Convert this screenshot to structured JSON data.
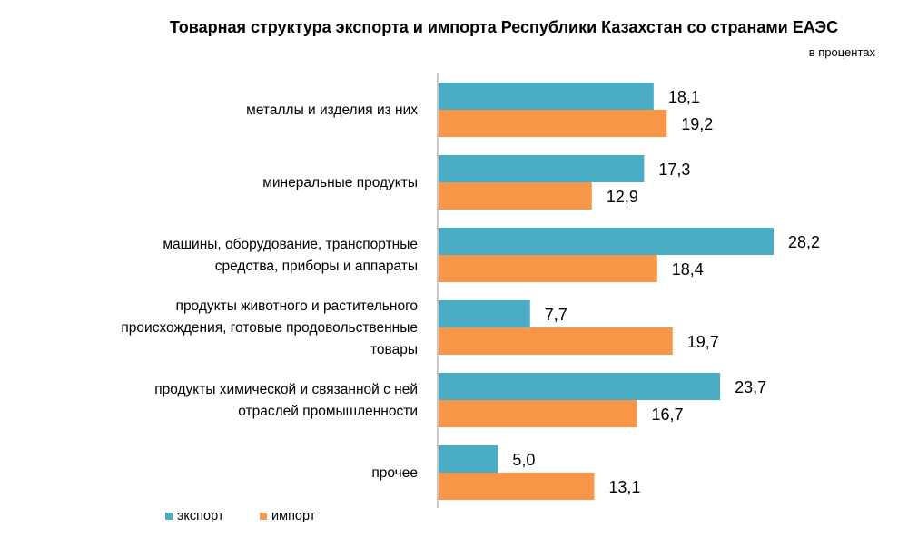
{
  "chart_data": {
    "type": "bar",
    "orientation": "horizontal",
    "title": "Товарная структура экспорта и импорта Республики Казахстан со странами ЕАЭС",
    "subtitle": "в процентах",
    "categories": [
      [
        "металлы и изделия из них"
      ],
      [
        "минеральные продукты"
      ],
      [
        "машины, оборудование, транспортные",
        "средства, приборы и аппараты"
      ],
      [
        "продукты животного и растительного",
        "происхождения, готовые продовольственные",
        "товары"
      ],
      [
        "продукты химической и связанной с ней",
        "отраслей промышленности"
      ],
      [
        "прочее"
      ]
    ],
    "series": [
      {
        "name": "экспорт",
        "color": "#4BACC6",
        "values": [
          18.1,
          17.3,
          28.2,
          7.7,
          23.7,
          5.0
        ],
        "labels": [
          "18,1",
          "17,3",
          "28,2",
          "7,7",
          "23,7",
          "5,0"
        ]
      },
      {
        "name": "импорт",
        "color": "#F79646",
        "values": [
          19.2,
          12.9,
          18.4,
          19.7,
          16.7,
          13.1
        ],
        "labels": [
          "19,2",
          "12,9",
          "18,4",
          "19,7",
          "16,7",
          "13,1"
        ]
      }
    ],
    "xlim": [
      0,
      30
    ],
    "grid": false,
    "legend_position": "bottom-left"
  }
}
